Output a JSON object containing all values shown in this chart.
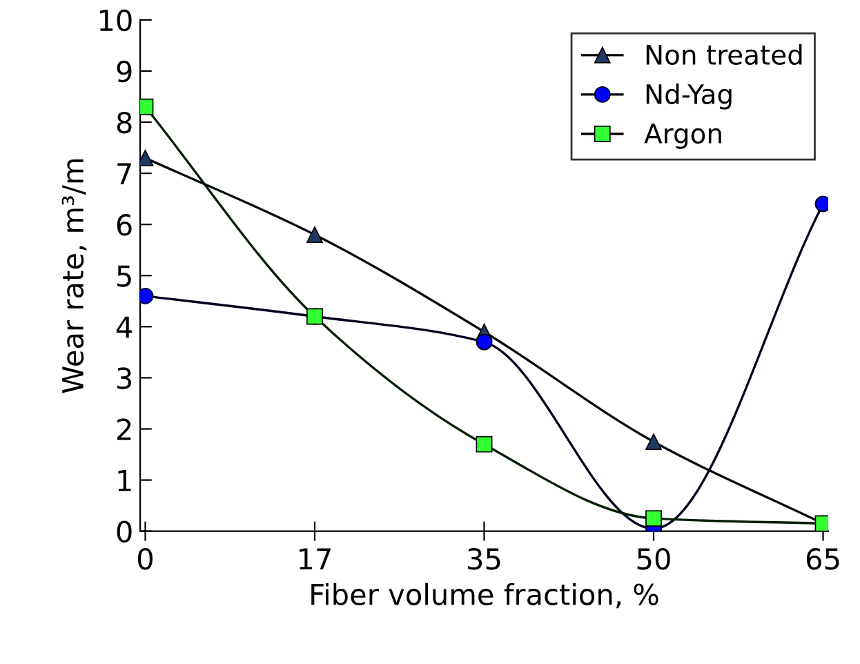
{
  "chart_data": {
    "type": "line",
    "xlabel": "Fiber volume fraction, %",
    "ylabel": "Wear rate, m³/m",
    "categories": [
      "0",
      "17",
      "35",
      "50",
      "65"
    ],
    "ylim": [
      0,
      10
    ],
    "yticks": [
      0,
      1,
      2,
      3,
      4,
      5,
      6,
      7,
      8,
      9,
      10
    ],
    "grid": false,
    "legend": "top right",
    "line_style": "solid",
    "series": [
      {
        "name": "Non treated",
        "color": "#1f3864",
        "marker": "triangle",
        "values": [
          7.3,
          5.8,
          3.9,
          1.75,
          0.15
        ]
      },
      {
        "name": "Nd-Yag",
        "color": "#0000ff",
        "marker": "circle",
        "values": [
          4.6,
          4.2,
          3.7,
          0.05,
          6.4
        ]
      },
      {
        "name": "Argon",
        "color": "#33ff33",
        "marker": "square",
        "values": [
          8.3,
          4.2,
          1.7,
          0.25,
          0.15
        ]
      }
    ]
  }
}
